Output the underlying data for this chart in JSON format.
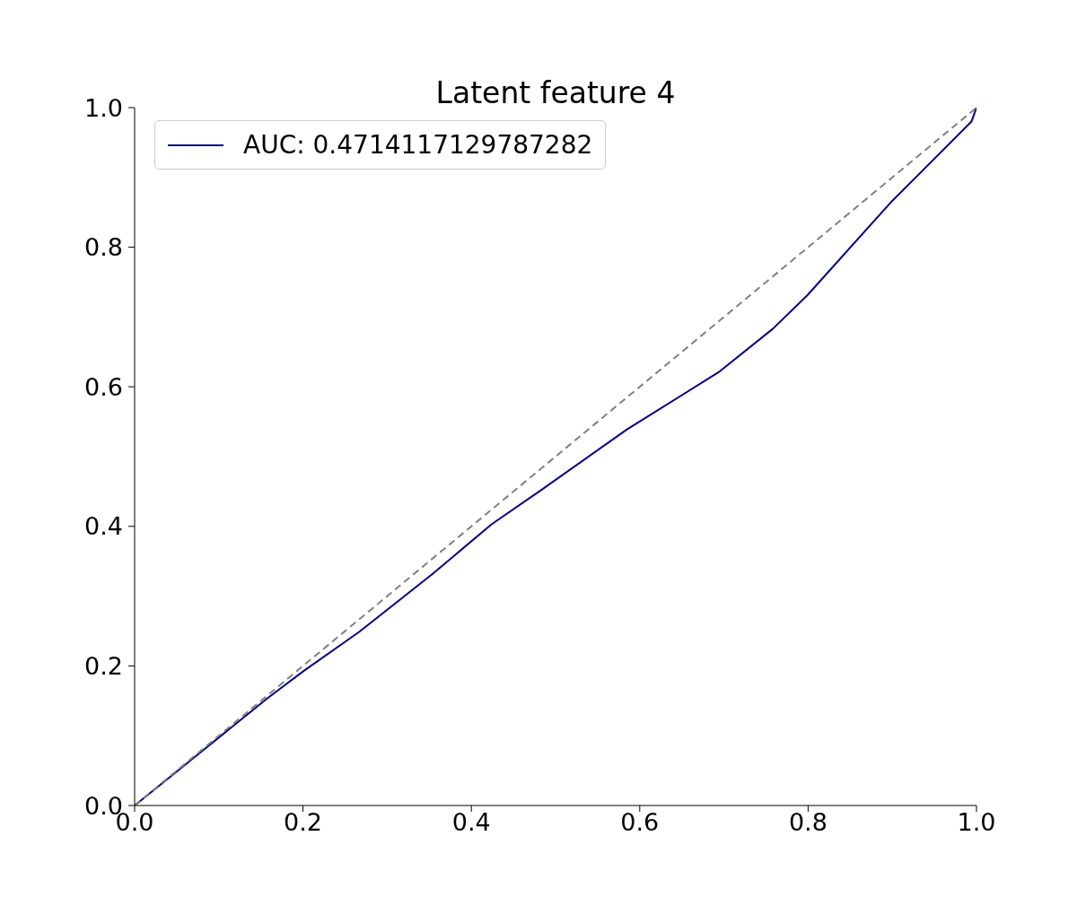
{
  "chart_data": {
    "type": "line",
    "title": "Latent feature 4",
    "xlim": [
      0,
      1
    ],
    "ylim": [
      0,
      1
    ],
    "xticks": [
      {
        "value": 0,
        "label": "0.0"
      },
      0.2,
      0.4,
      0.6,
      0.8,
      {
        "value": 1,
        "label": "1.0"
      }
    ],
    "yticks": [
      {
        "value": 0,
        "label": "0.0"
      },
      0.2,
      0.4,
      0.6,
      0.8,
      {
        "value": 1,
        "label": "1.0"
      }
    ],
    "legend": "top left",
    "series": [
      {
        "name": "AUC: 0.4714117129787282",
        "color": "#00008b",
        "line_style": "solid",
        "x": [
          0,
          0.071,
          0.157,
          0.201,
          0.267,
          0.353,
          0.424,
          0.484,
          0.585,
          0.695,
          0.758,
          0.799,
          0.898,
          0.994,
          1
        ],
        "values": [
          0,
          0.069,
          0.153,
          0.193,
          0.249,
          0.331,
          0.403,
          0.453,
          0.539,
          0.622,
          0.683,
          0.731,
          0.864,
          0.98,
          1
        ]
      },
      {
        "color": "#808080",
        "line_style": "dashed",
        "x": [
          0,
          1
        ],
        "values": [
          0,
          1
        ]
      }
    ]
  }
}
